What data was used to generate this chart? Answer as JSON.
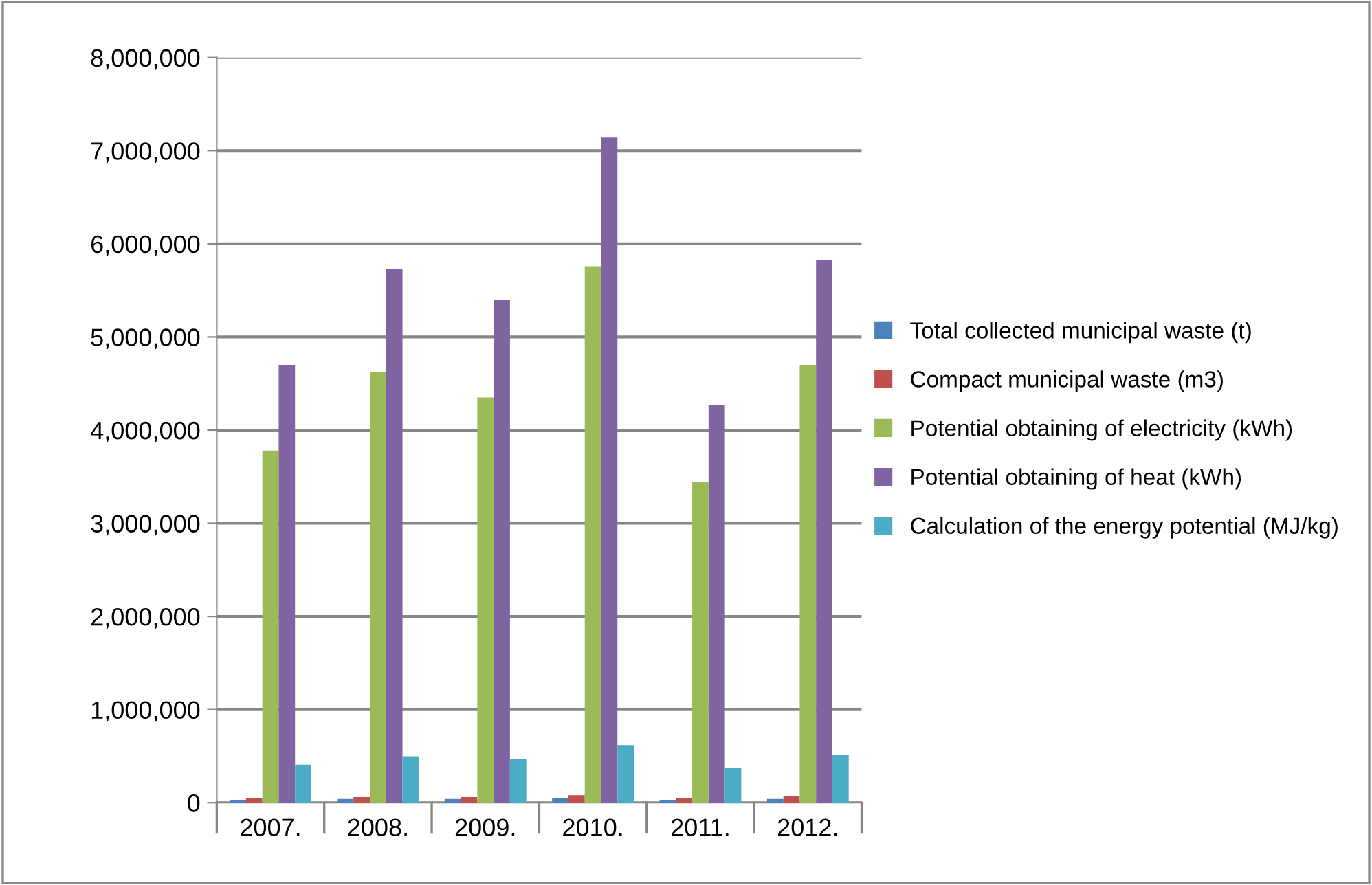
{
  "chart_data": {
    "type": "bar",
    "categories": [
      "2007.",
      "2008.",
      "2009.",
      "2010.",
      "2011.",
      "2012."
    ],
    "series": [
      {
        "name": "Total collected municipal waste (t)",
        "color": "#4f81bd",
        "values": [
          30000,
          40000,
          40000,
          50000,
          30000,
          40000
        ]
      },
      {
        "name": "Compact municipal waste (m3)",
        "color": "#c0504d",
        "values": [
          50000,
          60000,
          60000,
          80000,
          50000,
          70000
        ]
      },
      {
        "name": "Potential obtaining of electricity (kWh)",
        "color": "#9bbb59",
        "values": [
          3780000,
          4620000,
          4350000,
          5760000,
          3440000,
          4700000
        ]
      },
      {
        "name": "Potential obtaining of heat (kWh)",
        "color": "#8064a2",
        "values": [
          4700000,
          5730000,
          5400000,
          7140000,
          4270000,
          5830000
        ]
      },
      {
        "name": "Calculation of the energy potential (MJ/kg)",
        "color": "#4bacc6",
        "values": [
          410000,
          500000,
          470000,
          620000,
          370000,
          510000
        ]
      }
    ],
    "ylim": [
      0,
      8000000
    ],
    "yticks": [
      {
        "value": 0,
        "label": "0"
      },
      {
        "value": 1000000,
        "label": "1,000,000"
      },
      {
        "value": 2000000,
        "label": "2,000,000"
      },
      {
        "value": 3000000,
        "label": "3,000,000"
      },
      {
        "value": 4000000,
        "label": "4,000,000"
      },
      {
        "value": 5000000,
        "label": "5,000,000"
      },
      {
        "value": 6000000,
        "label": "6,000,000"
      },
      {
        "value": 7000000,
        "label": "7,000,000"
      },
      {
        "value": 8000000,
        "label": "8,000,000"
      }
    ],
    "grid": "y",
    "legend": "right"
  }
}
